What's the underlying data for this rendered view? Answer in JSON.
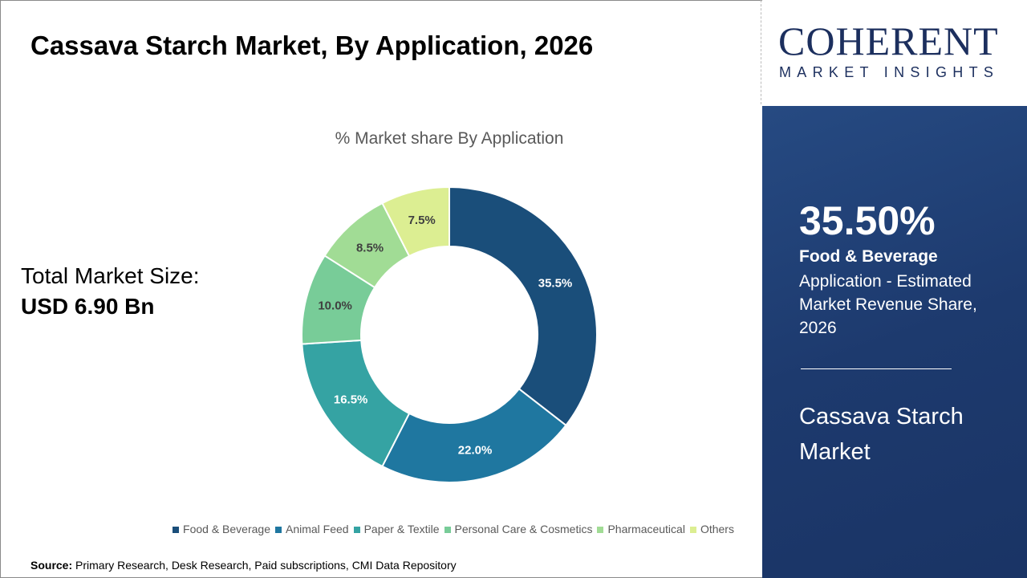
{
  "title": "Cassava Starch Market, By Application, 2026",
  "total": {
    "label": "Total Market Size:",
    "value": "USD 6.90 Bn"
  },
  "logo": {
    "line1": "COHERENT",
    "line2": "MARKET INSIGHTS"
  },
  "panel": {
    "percent": "35.50%",
    "segment": "Food & Beverage",
    "description": "Application - Estimated Market Revenue Share, 2026",
    "market": "Cassava Starch Market"
  },
  "source": {
    "label": "Source:",
    "text": " Primary Research, Desk Research, Paid subscriptions, CMI Data Repository"
  },
  "chart_data": {
    "type": "donut",
    "title": "% Market share By Application",
    "categories": [
      "Food & Beverage",
      "Animal Feed",
      "Paper & Textile",
      "Personal Care & Cosmetics",
      "Pharmaceutical",
      "Others"
    ],
    "values": [
      35.5,
      22.0,
      16.5,
      10.0,
      8.5,
      7.5
    ],
    "labels": [
      "35.5%",
      "22.0%",
      "16.5%",
      "10.0%",
      "8.5%",
      "7.5%"
    ],
    "colors": [
      "#1a4e7a",
      "#1f77a0",
      "#35a3a3",
      "#78cc98",
      "#a1dc95",
      "#dcee92"
    ],
    "legend": "bottom"
  }
}
